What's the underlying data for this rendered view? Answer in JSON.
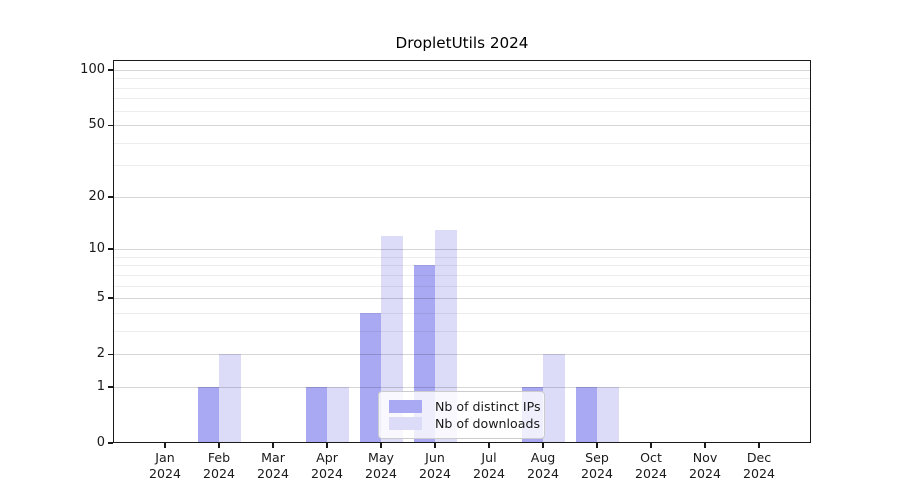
{
  "chart_data": {
    "type": "bar",
    "title": "DropletUtils 2024",
    "categories": [
      "Jan",
      "Feb",
      "Mar",
      "Apr",
      "May",
      "Jun",
      "Jul",
      "Aug",
      "Sep",
      "Oct",
      "Nov",
      "Dec"
    ],
    "x_year": "2024",
    "series": [
      {
        "name": "Nb of distinct IPs",
        "color": "#a9a9f3",
        "values": [
          0,
          1,
          0,
          1,
          4,
          8,
          0,
          1,
          1,
          0,
          0,
          0
        ]
      },
      {
        "name": "Nb of downloads",
        "color": "#dcdcf8",
        "values": [
          0,
          2,
          0,
          1,
          12,
          13,
          0,
          2,
          1,
          0,
          0,
          0
        ]
      }
    ],
    "yscale": "log1p",
    "ytick_values": [
      0,
      1,
      2,
      5,
      10,
      20,
      50,
      100
    ],
    "ytick_labels": [
      "0",
      "1",
      "2",
      "5",
      "10",
      "20",
      "50",
      "100"
    ],
    "ylim": [
      0,
      115
    ],
    "grid": "horizontal, minor every 1 (1-10) and every 10 (10-100)",
    "grid_major_color": "rgba(0,0,0,0.16)",
    "grid_minor_color": "rgba(0,0,0,0.07)",
    "legend_position": "inside-bottom-center",
    "axis_color": "#1a1a1a"
  }
}
